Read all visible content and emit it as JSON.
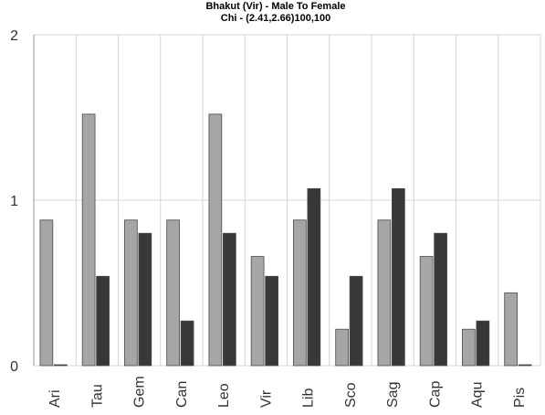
{
  "chart_data": {
    "type": "bar",
    "title": "Bhakut (Vir) - Male To Female",
    "subtitle": "Chi - (2.41,2.66)100,100",
    "categories": [
      "Ari",
      "Tau",
      "Gem",
      "Can",
      "Leo",
      "Vir",
      "Lib",
      "Sco",
      "Sag",
      "Cap",
      "Aqu",
      "Pis"
    ],
    "series": [
      {
        "values": [
          0.88,
          1.52,
          0.88,
          0.88,
          1.52,
          0.66,
          0.88,
          0.22,
          0.88,
          0.66,
          0.22,
          0.44
        ],
        "color": "#a6a6a6"
      },
      {
        "values": [
          0.0,
          0.54,
          0.8,
          0.27,
          0.8,
          0.54,
          1.07,
          0.54,
          1.07,
          0.8,
          0.27,
          0.0
        ],
        "color": "#383838"
      }
    ],
    "yticks": [
      0,
      1,
      2
    ],
    "ylim": [
      0,
      2
    ],
    "grid": true,
    "legend": "none"
  }
}
